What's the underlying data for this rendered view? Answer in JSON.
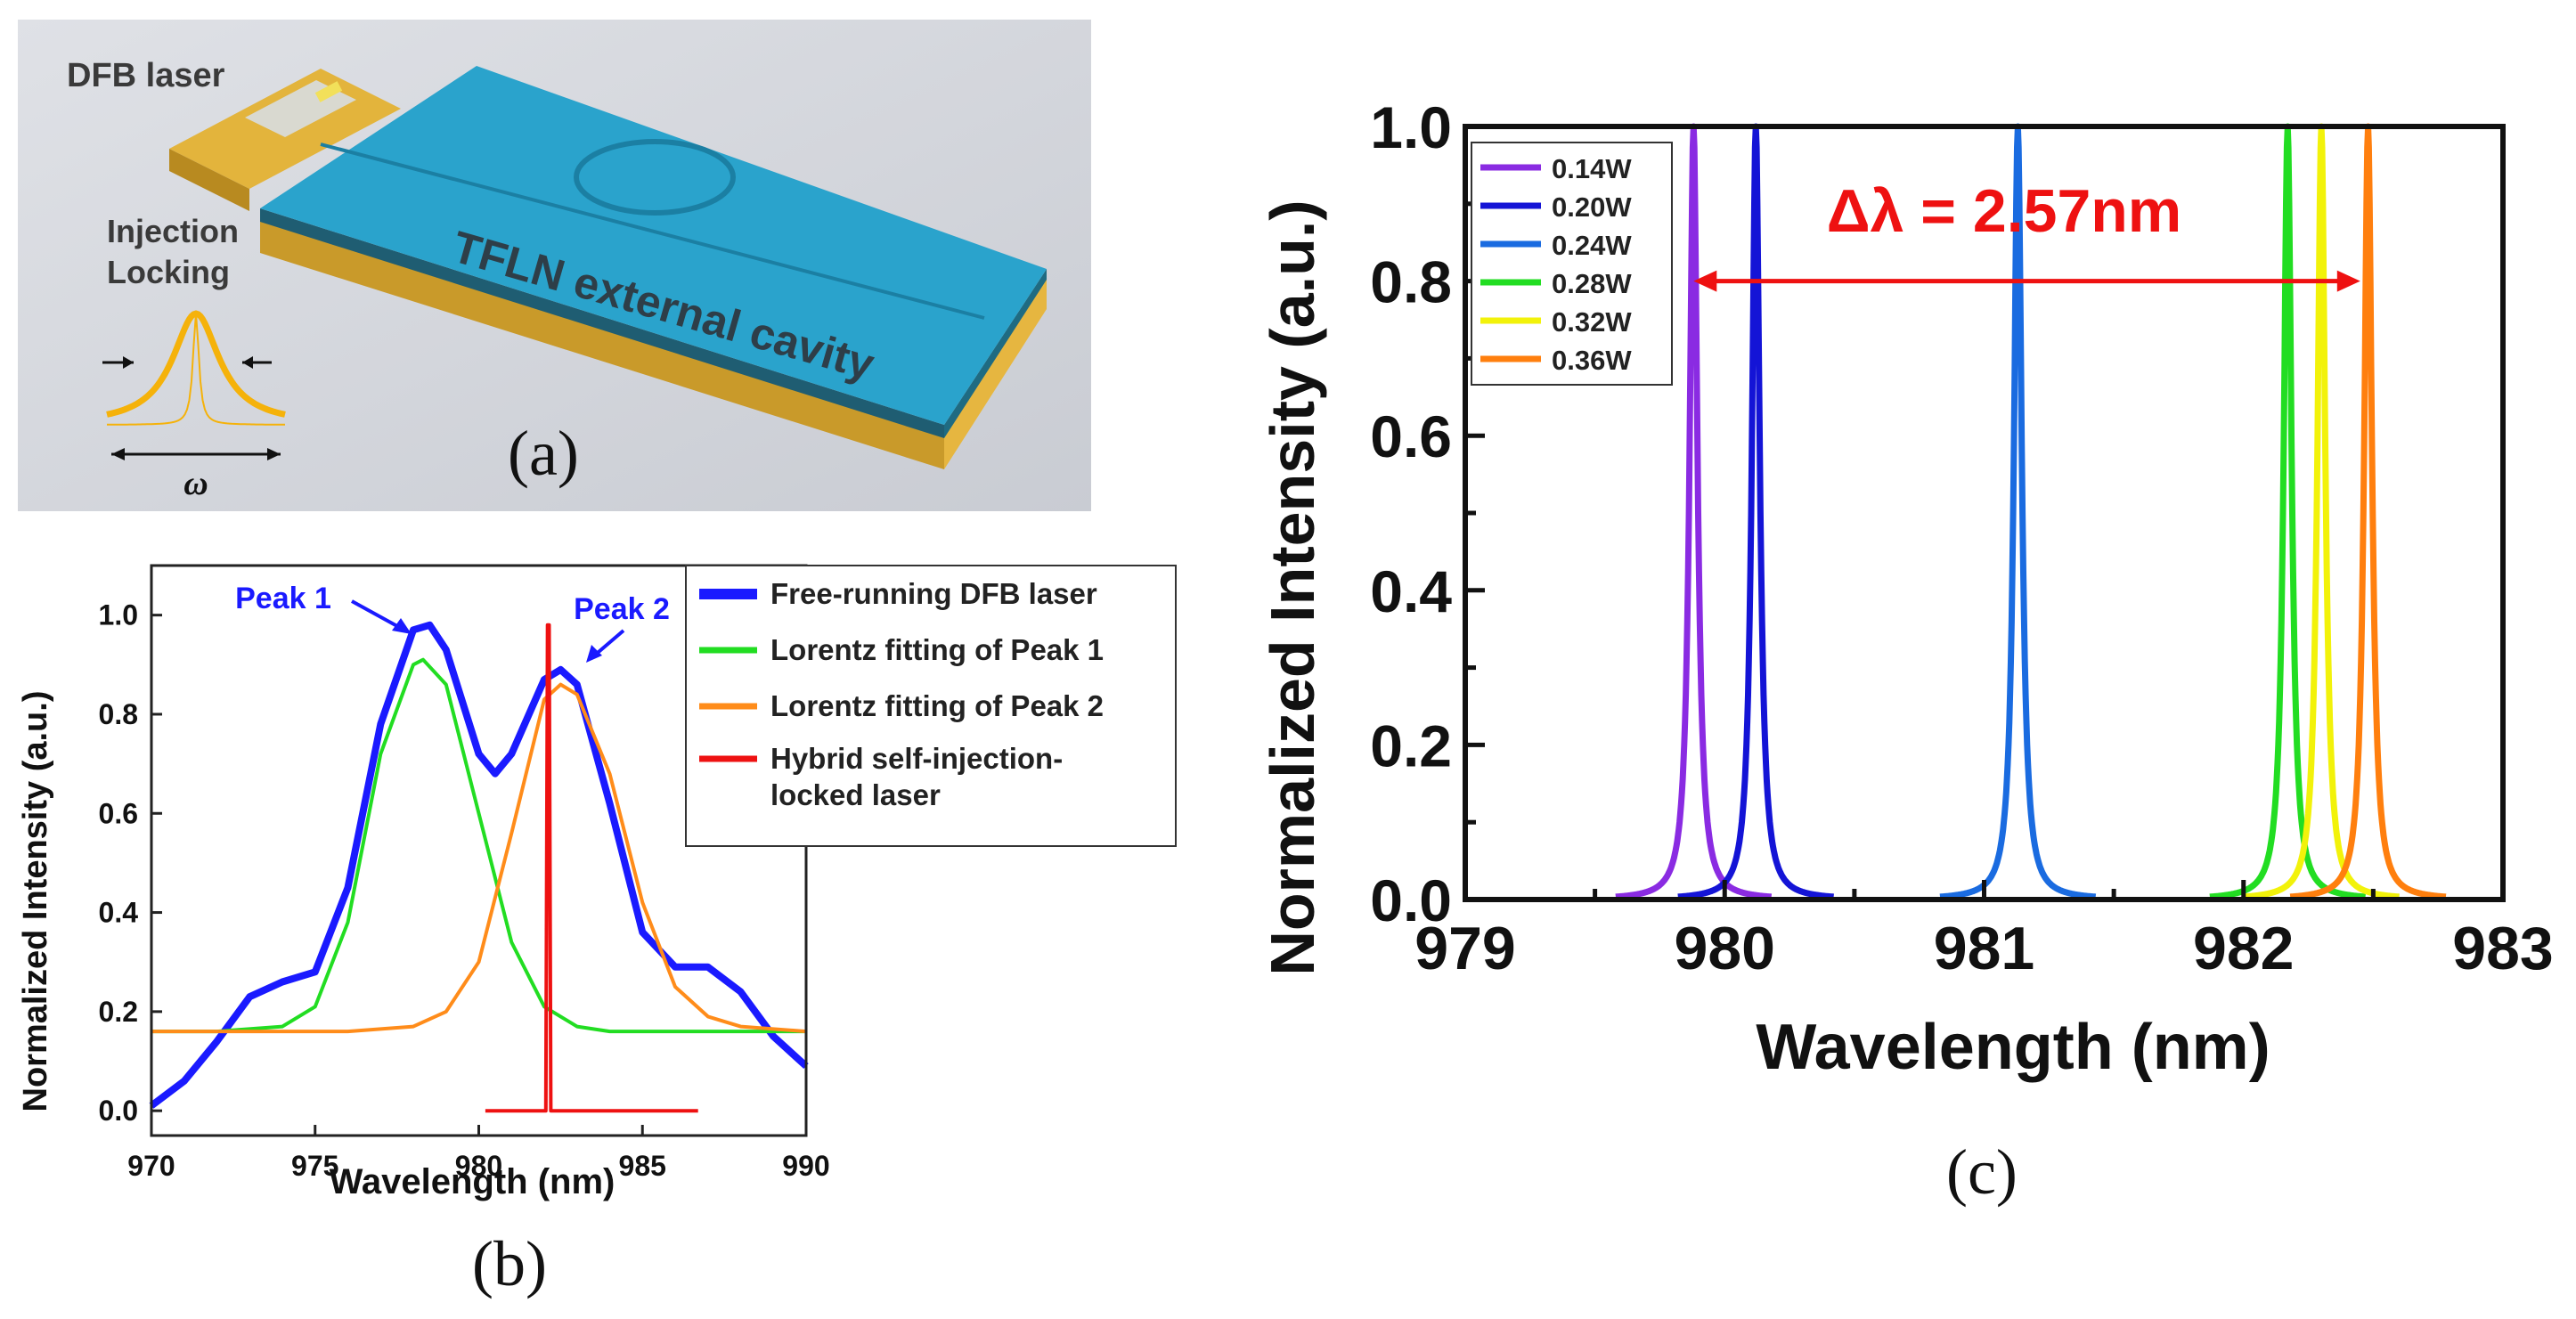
{
  "panel_a": {
    "label": "(a)",
    "dfb_laser": "DFB laser",
    "injection": "Injection",
    "locking": "Locking",
    "cavity": "TFLN external cavity",
    "omega": "ω",
    "colors": {
      "chip": "#2aa3cc",
      "substrate": "#c9a032",
      "line": "#f5b20a"
    }
  },
  "panel_b": {
    "label": "(b)",
    "peak1": "Peak 1",
    "peak2": "Peak 2"
  },
  "panel_c": {
    "label": "(c)",
    "annotation": "Δλ = 2.57nm"
  },
  "chart_data": [
    {
      "type": "line",
      "title": "",
      "xlabel": "Wavelength (nm)",
      "ylabel": "Normalized Intensity (a.u.)",
      "xlim": [
        970,
        990
      ],
      "ylim": [
        -0.05,
        1.1
      ],
      "xticks": [
        "970",
        "975",
        "980",
        "985",
        "990"
      ],
      "yticks": [
        "0.0",
        "0.2",
        "0.4",
        "0.6",
        "0.8",
        "1.0"
      ],
      "legend_position": "top-right",
      "series": [
        {
          "name": "Free-running DFB laser",
          "color": "#1a1aff",
          "x": [
            970,
            971,
            972,
            973,
            974,
            975,
            976,
            977,
            978,
            978.5,
            979,
            980,
            980.5,
            981,
            982,
            982.5,
            983,
            984,
            985,
            986,
            987,
            988,
            989,
            990
          ],
          "y": [
            0.01,
            0.06,
            0.14,
            0.23,
            0.26,
            0.28,
            0.45,
            0.78,
            0.97,
            0.98,
            0.93,
            0.72,
            0.68,
            0.72,
            0.87,
            0.89,
            0.86,
            0.62,
            0.36,
            0.29,
            0.29,
            0.24,
            0.15,
            0.09
          ]
        },
        {
          "name": "Lorentz fitting of Peak 1",
          "color": "#22dd22",
          "x": [
            970,
            972,
            974,
            975,
            976,
            977,
            978,
            978.3,
            979,
            980,
            981,
            982,
            983,
            984,
            986,
            988,
            990
          ],
          "y": [
            0.16,
            0.16,
            0.17,
            0.21,
            0.38,
            0.72,
            0.9,
            0.91,
            0.86,
            0.6,
            0.34,
            0.21,
            0.17,
            0.16,
            0.16,
            0.16,
            0.16
          ]
        },
        {
          "name": "Lorentz fitting of Peak 2",
          "color": "#ff8c1a",
          "x": [
            970,
            974,
            976,
            978,
            979,
            980,
            981,
            982,
            982.5,
            983,
            984,
            985,
            986,
            987,
            988,
            990
          ],
          "y": [
            0.16,
            0.16,
            0.16,
            0.17,
            0.2,
            0.3,
            0.56,
            0.83,
            0.86,
            0.84,
            0.68,
            0.42,
            0.25,
            0.19,
            0.17,
            0.16
          ]
        },
        {
          "name": "Hybrid self-injection-locked laser",
          "color": "#ee1111",
          "x": [
            980.2,
            982.05,
            982.1,
            982.15,
            982.2,
            982.25,
            986.7
          ],
          "y": [
            0.0,
            0.0,
            0.98,
            0.98,
            0.0,
            0.0,
            0.0
          ]
        }
      ]
    },
    {
      "type": "line",
      "title": "",
      "xlabel": "Wavelength (nm)",
      "ylabel": "Normalized Intensity (a.u.)",
      "xlim": [
        979,
        983
      ],
      "ylim": [
        0,
        1.0
      ],
      "xticks": [
        "979",
        "980",
        "981",
        "982",
        "983"
      ],
      "yticks": [
        "0.0",
        "0.2",
        "0.4",
        "0.6",
        "0.8",
        "1.0"
      ],
      "legend_position": "top-left",
      "annotation": {
        "text": "Δλ = 2.57nm",
        "x_start": 979.88,
        "x_end": 982.45,
        "y": 0.8
      },
      "series": [
        {
          "name": "0.14W",
          "color": "#8a2be2",
          "center": 979.88,
          "width": 0.018
        },
        {
          "name": "0.20W",
          "color": "#1414d6",
          "center": 980.12,
          "width": 0.018
        },
        {
          "name": "0.24W",
          "color": "#1a6be0",
          "center": 981.13,
          "width": 0.018
        },
        {
          "name": "0.28W",
          "color": "#22dd22",
          "center": 982.17,
          "width": 0.018
        },
        {
          "name": "0.32W",
          "color": "#f2f20a",
          "center": 982.3,
          "width": 0.018
        },
        {
          "name": "0.36W",
          "color": "#ff7f0e",
          "center": 982.48,
          "width": 0.018
        }
      ]
    }
  ]
}
